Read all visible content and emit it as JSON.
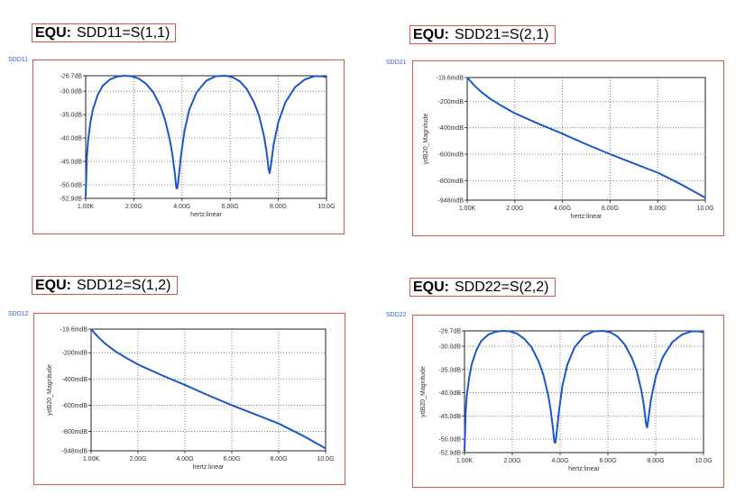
{
  "colors": {
    "trace": "#1a57c8",
    "frame": "#d9534f",
    "label": "#3366cc"
  },
  "panels": [
    {
      "id": "sdd11",
      "equ_keyword": "EQU:",
      "equ_expr": "SDD11=S(1,1)",
      "plot_label": "SDD11",
      "chart_data": {
        "type": "line",
        "title": "",
        "xlabel": "hertz:linear",
        "ylabel": "",
        "x_ticks": [
          "1.00K",
          "2.00G",
          "4.00G",
          "6.00G",
          "8.00G",
          "10.0G"
        ],
        "y_ticks": [
          "-26.7dB",
          "-30.0dB",
          "-35.0dB",
          "-40.0dB",
          "-45.0dB",
          "-50.0dB",
          "-52.9dB"
        ],
        "y_tick_values": [
          -26.7,
          -30,
          -35,
          -40,
          -45,
          -50,
          -52.9
        ],
        "xlim": [
          0,
          10
        ],
        "ylim": [
          -52.9,
          -26.7
        ],
        "x_unit": "GHz",
        "series": [
          {
            "x": [
              0,
              0.05,
              0.1,
              0.2,
              0.3,
              0.5,
              0.7,
              1.0,
              1.3,
              1.6,
              1.9,
              2.2,
              2.5,
              2.8,
              3.1,
              3.3,
              3.5,
              3.6,
              3.7,
              3.76,
              3.8,
              3.85,
              3.95,
              4.1,
              4.3,
              4.6,
              5.0,
              5.4,
              5.8,
              6.1,
              6.4,
              6.7,
              7.0,
              7.2,
              7.4,
              7.5,
              7.6,
              7.64,
              7.7,
              7.8,
              8.0,
              8.3,
              8.7,
              9.1,
              9.5,
              9.8,
              10.0
            ],
            "y": [
              -52.6,
              -44,
              -40.5,
              -36.6,
              -33.9,
              -30.8,
              -28.9,
              -27.5,
              -26.9,
              -26.7,
              -26.8,
              -27.3,
              -28.4,
              -30.2,
              -33.2,
              -36.2,
              -40.5,
              -43.5,
              -47.5,
              -50.6,
              -50.8,
              -49,
              -44,
              -38.5,
              -34,
              -30.3,
              -27.8,
              -26.8,
              -26.7,
              -27,
              -27.9,
              -29.6,
              -32.5,
              -35.2,
              -39.5,
              -42.6,
              -46.8,
              -47.5,
              -45.5,
              -41.5,
              -36.6,
              -32.3,
              -29.1,
              -27.5,
              -26.8,
              -26.8,
              -27
            ]
          }
        ]
      }
    },
    {
      "id": "sdd21",
      "equ_keyword": "EQU:",
      "equ_expr": "SDD21=S(2,1)",
      "plot_label": "SDD21",
      "chart_data": {
        "type": "line",
        "title": "",
        "xlabel": "hertz:linear",
        "ylabel": "ydB20_Magnitude",
        "x_ticks": [
          "1.00K",
          "2.00G",
          "4.00G",
          "6.00G",
          "8.00G",
          "10.0G"
        ],
        "y_ticks": [
          "-19.6mdB",
          "-200mdB",
          "-400mdB",
          "-600mdB",
          "-800mdB",
          "-948mdB"
        ],
        "y_tick_values": [
          -19.6,
          -200,
          -400,
          -600,
          -800,
          -948
        ],
        "xlim": [
          0,
          10
        ],
        "ylim": [
          -948,
          -19.6
        ],
        "x_unit": "GHz",
        "y_unit": "mdB",
        "series": [
          {
            "x": [
              0,
              0.3,
              0.6,
              1.0,
              1.5,
              2.0,
              3.0,
              4.0,
              5.0,
              6.0,
              7.0,
              8.0,
              9.0,
              10.0
            ],
            "y": [
              -19.6,
              -80,
              -130,
              -185,
              -240,
              -290,
              -370,
              -445,
              -525,
              -600,
              -670,
              -740,
              -830,
              -930
            ]
          }
        ]
      }
    },
    {
      "id": "sdd12",
      "equ_keyword": "EQU:",
      "equ_expr": "SDD12=S(1,2)",
      "plot_label": "SDD12",
      "chart_data": {
        "type": "line",
        "title": "",
        "xlabel": "hertz:linear",
        "ylabel": "ydB20_Magnitude",
        "x_ticks": [
          "1.00K",
          "2.00G",
          "4.00G",
          "6.00G",
          "8.00G",
          "10.0G"
        ],
        "y_ticks": [
          "-19.6mdB",
          "-200mdB",
          "-400mdB",
          "-600mdB",
          "-800mdB",
          "-948mdB"
        ],
        "y_tick_values": [
          -19.6,
          -200,
          -400,
          -600,
          -800,
          -948
        ],
        "xlim": [
          0,
          10
        ],
        "ylim": [
          -948,
          -19.6
        ],
        "x_unit": "GHz",
        "y_unit": "mdB",
        "series": [
          {
            "x": [
              0,
              0.3,
              0.6,
              1.0,
              1.5,
              2.0,
              3.0,
              4.0,
              5.0,
              6.0,
              7.0,
              8.0,
              9.0,
              10.0
            ],
            "y": [
              -19.6,
              -80,
              -130,
              -185,
              -240,
              -290,
              -370,
              -445,
              -525,
              -600,
              -670,
              -740,
              -830,
              -930
            ]
          }
        ]
      }
    },
    {
      "id": "sdd22",
      "equ_keyword": "EQU:",
      "equ_expr": "SDD22=S(2,2)",
      "plot_label": "SDD22",
      "chart_data": {
        "type": "line",
        "title": "",
        "xlabel": "hertz:linear",
        "ylabel": "ydB20_Magnitude",
        "x_ticks": [
          "1.00K",
          "2.00G",
          "4.00G",
          "6.00G",
          "8.00G",
          "10.0G"
        ],
        "y_ticks": [
          "-26.7dB",
          "-30.0dB",
          "-35.0dB",
          "-40.0dB",
          "-45.0dB",
          "-50.0dB",
          "-52.9dB"
        ],
        "y_tick_values": [
          -26.7,
          -30,
          -35,
          -40,
          -45,
          -50,
          -52.9
        ],
        "xlim": [
          0,
          10
        ],
        "ylim": [
          -52.9,
          -26.7
        ],
        "x_unit": "GHz",
        "series": [
          {
            "x": [
              0,
              0.05,
              0.1,
              0.2,
              0.3,
              0.5,
              0.7,
              1.0,
              1.3,
              1.6,
              1.9,
              2.2,
              2.5,
              2.8,
              3.1,
              3.3,
              3.5,
              3.6,
              3.7,
              3.76,
              3.8,
              3.85,
              3.95,
              4.1,
              4.3,
              4.6,
              5.0,
              5.4,
              5.8,
              6.1,
              6.4,
              6.7,
              7.0,
              7.2,
              7.4,
              7.5,
              7.6,
              7.64,
              7.7,
              7.8,
              8.0,
              8.3,
              8.7,
              9.1,
              9.5,
              9.8,
              10.0
            ],
            "y": [
              -52.6,
              -44,
              -40.5,
              -36.6,
              -33.9,
              -30.8,
              -28.9,
              -27.5,
              -26.9,
              -26.7,
              -26.8,
              -27.3,
              -28.4,
              -30.2,
              -33.2,
              -36.2,
              -40.5,
              -43.5,
              -47.5,
              -50.6,
              -50.8,
              -49,
              -44,
              -38.5,
              -34,
              -30.3,
              -27.8,
              -26.8,
              -26.7,
              -27,
              -27.9,
              -29.6,
              -32.5,
              -35.2,
              -39.5,
              -42.6,
              -46.8,
              -47.5,
              -45.5,
              -41.5,
              -36.6,
              -32.3,
              -29.1,
              -27.5,
              -26.8,
              -26.8,
              -27
            ]
          }
        ]
      }
    }
  ]
}
